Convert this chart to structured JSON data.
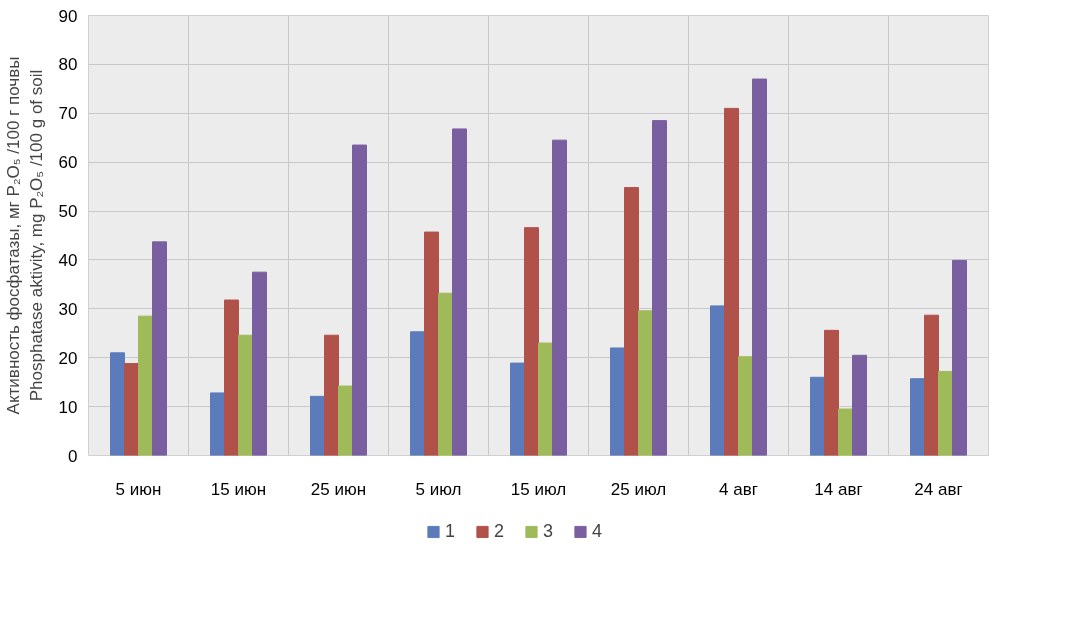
{
  "chart_data": {
    "type": "bar",
    "ylabel": "Активность фосфатазы, мг P₂O₅ /100 г почвы\nPhosphatase aktivity, mg P₂O₅ /100 g of soil",
    "categories": [
      "5 июн",
      "15 июн",
      "25 июн",
      "5 июл",
      "15 июл",
      "25 июл",
      "4 авг",
      "14 авг",
      "24 авг"
    ],
    "series": [
      {
        "name": "1",
        "color": "#5b7bbb",
        "values": [
          21,
          12.8,
          12.1,
          25.3,
          18.9,
          22,
          30.6,
          16,
          15.7
        ]
      },
      {
        "name": "2",
        "color": "#b0514a",
        "values": [
          18.8,
          31.8,
          24.6,
          45.7,
          46.6,
          54.8,
          71,
          25.6,
          28.7
        ]
      },
      {
        "name": "3",
        "color": "#9fba59",
        "values": [
          28.5,
          24.6,
          14.2,
          33.2,
          23,
          29.6,
          20.2,
          9.5,
          17.2
        ]
      },
      {
        "name": "4",
        "color": "#7a5fa0",
        "values": [
          43.7,
          37.5,
          63.5,
          66.8,
          64.5,
          68.5,
          77,
          20.5,
          39.9
        ]
      }
    ],
    "ylim": [
      0,
      90
    ],
    "yticks": [
      0,
      10,
      20,
      30,
      40,
      50,
      60,
      70,
      80,
      90
    ],
    "grid": true,
    "legend": "bottom"
  }
}
